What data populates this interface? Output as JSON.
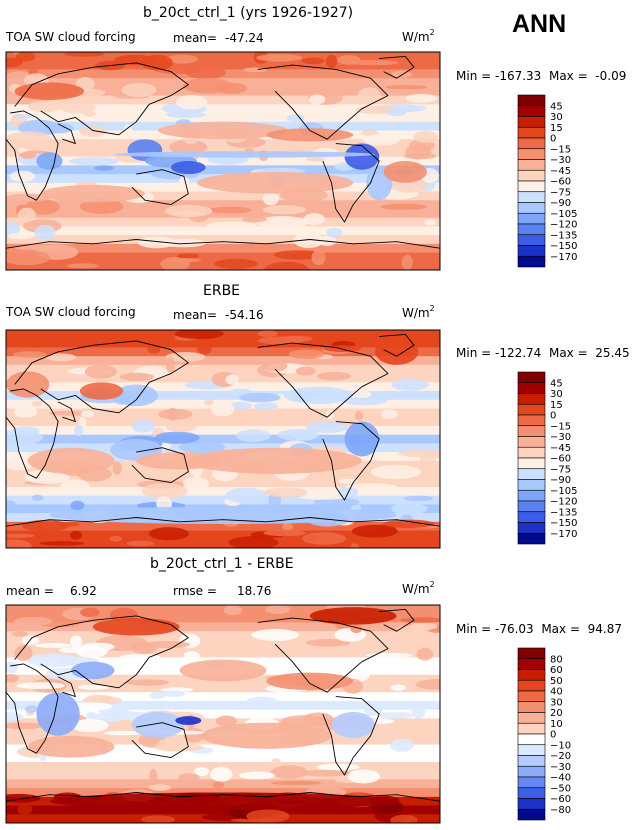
{
  "season_label": "ANN",
  "panels": [
    {
      "title": "b_20ct_ctrl_1 (yrs 1926-1927)",
      "left_label": "TOA SW cloud forcing",
      "mean_label": "mean=",
      "mean_value": "-47.24",
      "units": "W/m",
      "units_sup": "2",
      "min_label": "Min =",
      "min_value": "-167.33",
      "max_label": "Max =",
      "max_value": "-0.09",
      "legend_levels": [
        "45",
        "30",
        "15",
        "0",
        "−15",
        "−30",
        "−45",
        "−60",
        "−75",
        "−90",
        "−105",
        "−120",
        "−135",
        "−150",
        "−170"
      ]
    },
    {
      "title": "ERBE",
      "left_label": "TOA SW cloud forcing",
      "mean_label": "mean=",
      "mean_value": "-54.16",
      "units": "W/m",
      "units_sup": "2",
      "min_label": "Min =",
      "min_value": "-122.74",
      "max_label": "Max =",
      "max_value": "25.45",
      "legend_levels": [
        "45",
        "30",
        "15",
        "0",
        "−15",
        "−30",
        "−45",
        "−60",
        "−75",
        "−90",
        "−105",
        "−120",
        "−135",
        "−150",
        "−170"
      ]
    },
    {
      "title": "b_20ct_ctrl_1 - ERBE",
      "left_label": "mean =",
      "left_value": "6.92",
      "rmse_label": "rmse =",
      "rmse_value": "18.76",
      "units": "W/m",
      "units_sup": "2",
      "min_label": "Min =",
      "min_value": "-76.03",
      "max_label": "Max =",
      "max_value": "94.87",
      "legend_levels": [
        "80",
        "60",
        "50",
        "40",
        "30",
        "20",
        "10",
        "0",
        "−10",
        "−20",
        "−30",
        "−40",
        "−50",
        "−60",
        "−80"
      ]
    }
  ],
  "colors": {
    "scale_top": [
      "#800000",
      "#a00000",
      "#c81e00",
      "#e4461e",
      "#ee6a46",
      "#f49070",
      "#f8b098",
      "#fcd4c0",
      "#fff0e6",
      "#cce0ff",
      "#a8c8ff",
      "#7ea6f8",
      "#5a82f0",
      "#3a5ce6",
      "#1a32c8",
      "#000a8c"
    ],
    "scale_diff": [
      "#800000",
      "#a00000",
      "#c81e00",
      "#e4461e",
      "#ee6a46",
      "#f49070",
      "#f8b098",
      "#fcd4c0",
      "#ffffff",
      "#dceaff",
      "#b4ccff",
      "#8cacfa",
      "#6488f2",
      "#3c60e6",
      "#1a32c8",
      "#000a8c"
    ],
    "coast": "#000000"
  },
  "chart_data": [
    {
      "type": "heatmap",
      "title": "b_20ct_ctrl_1 (yrs 1926-1927)",
      "subtitle": "TOA SW cloud forcing",
      "units": "W/m2",
      "mean": -47.24,
      "min": -167.33,
      "max": -0.09,
      "contour_levels": [
        45,
        30,
        15,
        0,
        -15,
        -30,
        -45,
        -60,
        -75,
        -90,
        -105,
        -120,
        -135,
        -150,
        -170
      ]
    },
    {
      "type": "heatmap",
      "title": "ERBE",
      "subtitle": "TOA SW cloud forcing",
      "units": "W/m2",
      "mean": -54.16,
      "min": -122.74,
      "max": 25.45,
      "contour_levels": [
        45,
        30,
        15,
        0,
        -15,
        -30,
        -45,
        -60,
        -75,
        -90,
        -105,
        -120,
        -135,
        -150,
        -170
      ]
    },
    {
      "type": "heatmap",
      "title": "b_20ct_ctrl_1 - ERBE",
      "units": "W/m2",
      "mean": 6.92,
      "rmse": 18.76,
      "min": -76.03,
      "max": 94.87,
      "contour_levels": [
        80,
        60,
        50,
        40,
        30,
        20,
        10,
        0,
        -10,
        -20,
        -30,
        -40,
        -50,
        -60,
        -80
      ]
    }
  ]
}
